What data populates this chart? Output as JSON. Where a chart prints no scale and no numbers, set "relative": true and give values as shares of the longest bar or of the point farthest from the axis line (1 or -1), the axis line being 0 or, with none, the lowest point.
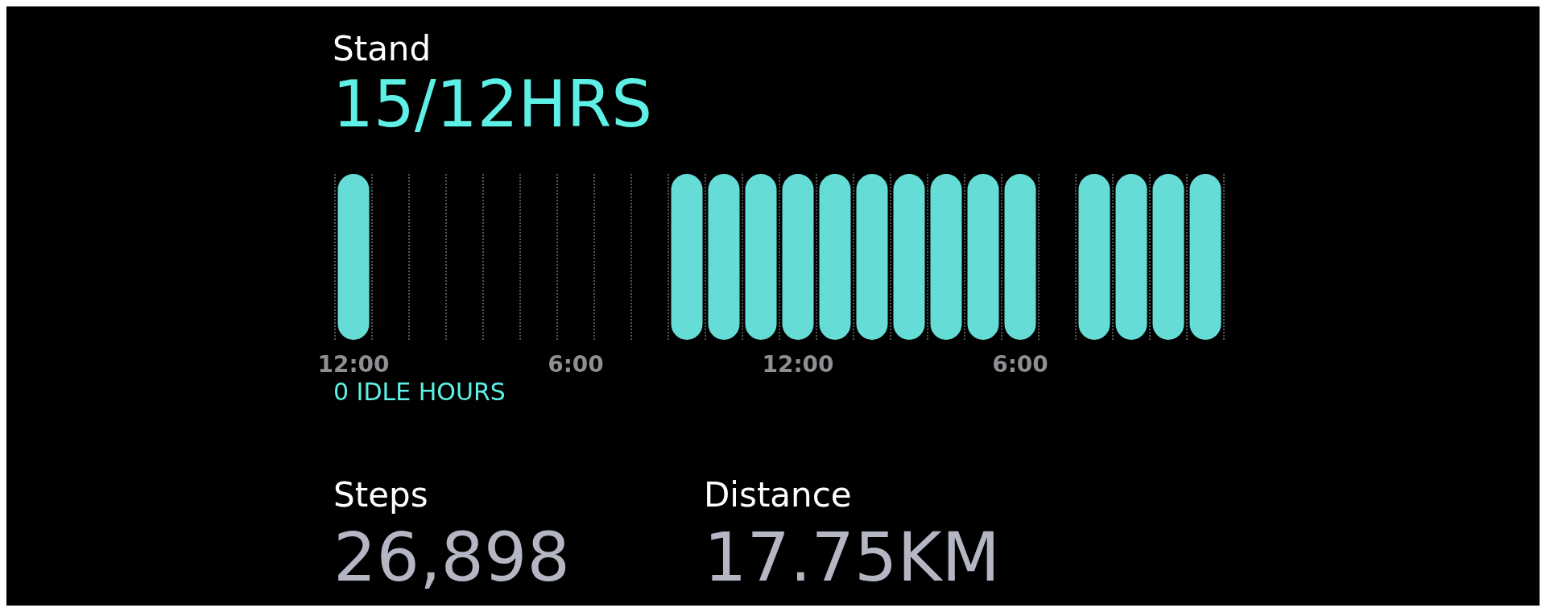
{
  "chart_data": {
    "type": "bar",
    "title": "Stand",
    "subtitle": "15/12HRS",
    "categories": [
      "12:00",
      null,
      null,
      null,
      null,
      null,
      "6:00",
      null,
      null,
      null,
      null,
      null,
      "12:00",
      null,
      null,
      null,
      null,
      null,
      "6:00",
      null,
      null,
      null,
      null,
      null
    ],
    "values": [
      1,
      0,
      0,
      0,
      0,
      0,
      0,
      0,
      0,
      1,
      1,
      1,
      1,
      1,
      1,
      1,
      1,
      1,
      1,
      0,
      1,
      1,
      1,
      1
    ],
    "color": "#66dcd6",
    "relative": true,
    "grid": "x",
    "annotations": [
      "0 IDLE HOURS",
      "Steps",
      "26,898",
      "Distance",
      "17.75KM"
    ]
  }
}
